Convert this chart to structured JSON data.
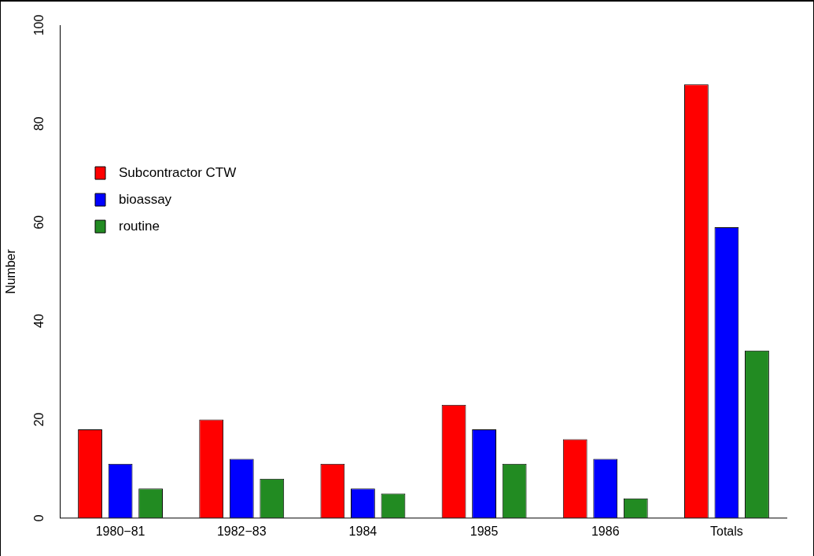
{
  "chart_data": {
    "type": "bar",
    "ylabel": "Number",
    "categories": [
      "1980−81",
      "1982−83",
      "1984",
      "1985",
      "1986",
      "Totals"
    ],
    "series": [
      {
        "name": "Subcontractor CTW",
        "color": "#ff0000",
        "values": [
          18,
          20,
          11,
          23,
          16,
          88
        ]
      },
      {
        "name": "bioassay",
        "color": "#0000ff",
        "values": [
          11,
          12,
          6,
          18,
          12,
          59
        ]
      },
      {
        "name": "routine",
        "color": "#228b22",
        "values": [
          6,
          8,
          5,
          11,
          4,
          34
        ]
      }
    ],
    "ylim": [
      0,
      100
    ],
    "yticks": [
      0,
      20,
      40,
      60,
      80,
      100
    ],
    "grid": false,
    "legend": "top left"
  }
}
